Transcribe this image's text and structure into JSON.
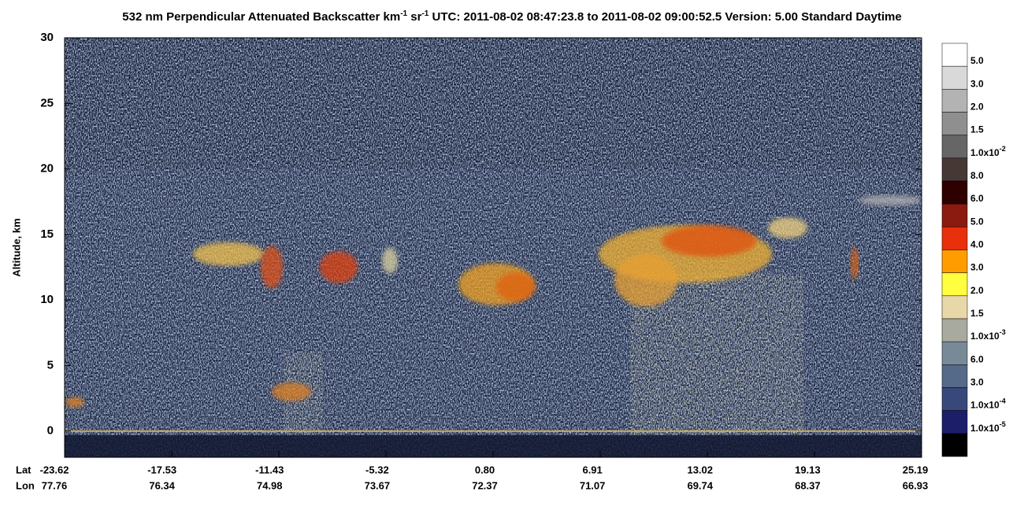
{
  "chart_data": {
    "type": "heatmap",
    "title_segments": [
      {
        "text": "532 nm Perpendicular Attenuated Backscatter km"
      },
      {
        "sup": "-1"
      },
      {
        "text": " sr"
      },
      {
        "sup": "-1"
      },
      {
        "text": "  UTC: 2011-08-02 08:47:23.8 to 2011-08-02 09:00:52.5  Version: 5.00 Standard Daytime"
      }
    ],
    "ylabel": "Altitude, km",
    "ylim": [
      -2,
      30
    ],
    "yticks": [
      0,
      5,
      10,
      15,
      20,
      25,
      30
    ],
    "x_row_labels": [
      "Lat",
      "Lon"
    ],
    "lat_labels": [
      "-23.62",
      "-17.53",
      "-11.43",
      "-5.32",
      "0.80",
      "6.91",
      "13.02",
      "19.13",
      "25.19"
    ],
    "lon_labels": [
      "77.76",
      "76.34",
      "74.98",
      "73.67",
      "72.37",
      "71.07",
      "69.74",
      "68.37",
      "66.93"
    ],
    "colorbar": {
      "colors": [
        "#ffffff",
        "#d9d9d9",
        "#b3b3b3",
        "#8f8f8f",
        "#666666",
        "#463834",
        "#2e0000",
        "#8b1a10",
        "#e8300c",
        "#ff9c00",
        "#ffff40",
        "#e8d8a8",
        "#a8aaa0",
        "#788a98",
        "#546a88",
        "#38487a",
        "#1c1e6a",
        "#000000"
      ],
      "labels": [
        {
          "text": "5.0"
        },
        {
          "text": "3.0"
        },
        {
          "text": "2.0"
        },
        {
          "text": "1.5"
        },
        {
          "text": "1.0x10",
          "sup": "-2"
        },
        {
          "text": "8.0"
        },
        {
          "text": "6.0"
        },
        {
          "text": "5.0"
        },
        {
          "text": "4.0"
        },
        {
          "text": "3.0"
        },
        {
          "text": "2.0"
        },
        {
          "text": "1.5"
        },
        {
          "text": "1.0x10",
          "sup": "-3"
        },
        {
          "text": "6.0"
        },
        {
          "text": "3.0"
        },
        {
          "text": "1.0x10",
          "sup": "-4"
        },
        {
          "text": "1.0x10",
          "sup": "-5"
        }
      ]
    }
  }
}
